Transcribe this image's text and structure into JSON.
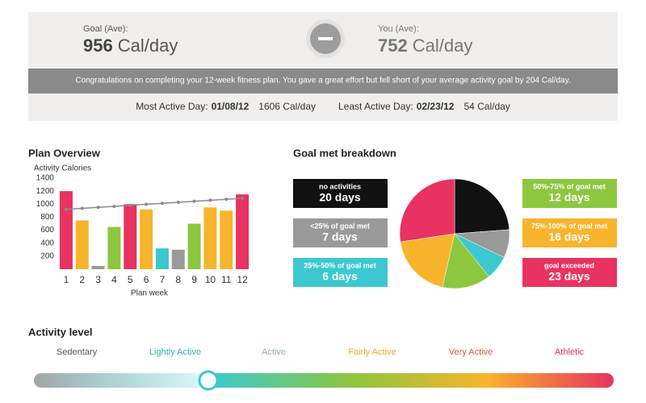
{
  "header": {
    "goal": {
      "label": "Goal (Ave):",
      "value": "956",
      "unit": "Cal/day"
    },
    "you": {
      "label": "You (Ave):",
      "value": "752",
      "unit": "Cal/day"
    },
    "message": "Congratulations on completing your 12-week fitness plan. You gave a great effort but fell short of your average activity goal by 204 Cal/day.",
    "most_active": {
      "label": "Most Active Day:",
      "date": "01/08/12",
      "value": "1606 Cal/day"
    },
    "least_active": {
      "label": "Least Active Day:",
      "date": "02/23/12",
      "value": "54 Cal/day"
    }
  },
  "chart_data": [
    {
      "type": "bar",
      "title": "Plan Overview",
      "y_label": "Activity Calories",
      "x_label": "Plan week",
      "categories": [
        "1",
        "2",
        "3",
        "4",
        "5",
        "6",
        "7",
        "8",
        "9",
        "10",
        "11",
        "12"
      ],
      "values": [
        1200,
        750,
        50,
        650,
        1000,
        920,
        320,
        300,
        700,
        950,
        900,
        1150
      ],
      "colors": [
        "#e8325f",
        "#f8b42c",
        "#9a9a9a",
        "#8dc63f",
        "#e8325f",
        "#f8b42c",
        "#3cc8cf",
        "#9a9a9a",
        "#8dc63f",
        "#f8b42c",
        "#f8b42c",
        "#e8325f"
      ],
      "goal_line": {
        "color": "#8a8a8a",
        "values": [
          920,
          935,
          951,
          966,
          982,
          997,
          1013,
          1028,
          1044,
          1059,
          1075,
          1090
        ]
      },
      "ylim": [
        0,
        1400
      ],
      "yticks": [
        200,
        400,
        600,
        800,
        1000,
        1200,
        1400
      ]
    },
    {
      "type": "pie",
      "title": "Goal met breakdown",
      "categories": [
        "no activities",
        "<25% of goal met",
        "25%-50% of goal met",
        "50%-75% of goal met",
        "75%-100% of goal met",
        "goal exceeded"
      ],
      "values": [
        20,
        7,
        6,
        12,
        16,
        23
      ],
      "value_labels": [
        "20 days",
        "7 days",
        "6 days",
        "12 days",
        "16 days",
        "23 days"
      ],
      "colors": [
        "#111111",
        "#9a9a9a",
        "#3cc8cf",
        "#8dc63f",
        "#f8b42c",
        "#e8325f"
      ]
    }
  ],
  "activity": {
    "title": "Activity level",
    "levels": [
      {
        "name": "Sedentary",
        "color": "#555555"
      },
      {
        "name": "Lightly Active",
        "color": "#2bb5a8"
      },
      {
        "name": "Active",
        "color": "#7fb8a4"
      },
      {
        "name": "Fairly Active",
        "color": "#f5a623"
      },
      {
        "name": "Very Active",
        "color": "#e8553a"
      },
      {
        "name": "Athletic",
        "color": "#e0306a"
      }
    ]
  }
}
